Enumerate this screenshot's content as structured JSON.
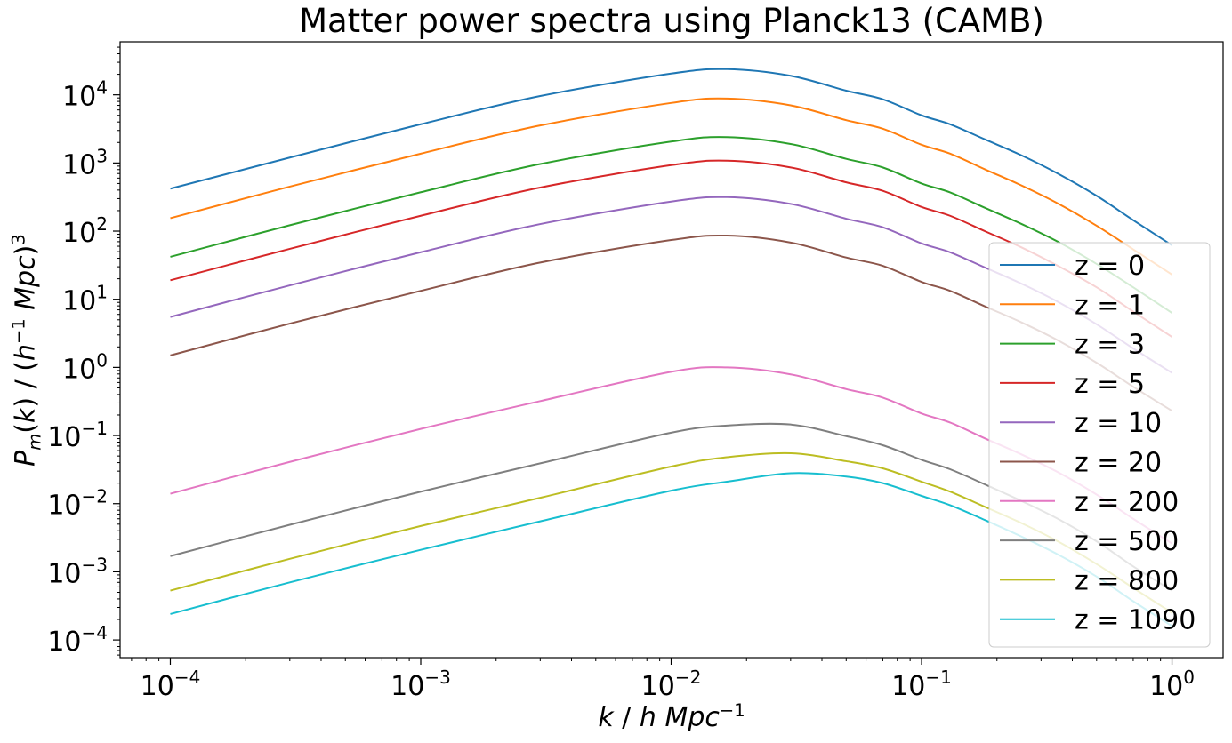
{
  "chart_data": {
    "type": "line",
    "title": "Matter power spectra using Planck13 (CAMB)",
    "xlabel": "k / h Mpc^-1",
    "ylabel": "P_m(k) / (h^-1 Mpc)^3",
    "x_scale": "log",
    "y_scale": "log",
    "xlim": [
      6.3e-05,
      1.6
    ],
    "ylim": [
      5.5e-05,
      60000
    ],
    "xticks": [
      {
        "base": "10",
        "exp": "−4",
        "value": 0.0001
      },
      {
        "base": "10",
        "exp": "−3",
        "value": 0.001
      },
      {
        "base": "10",
        "exp": "−2",
        "value": 0.01
      },
      {
        "base": "10",
        "exp": "−1",
        "value": 0.1
      },
      {
        "base": "10",
        "exp": "0",
        "value": 1
      }
    ],
    "yticks": [
      {
        "base": "10",
        "exp": "−4",
        "value": 0.0001
      },
      {
        "base": "10",
        "exp": "−3",
        "value": 0.001
      },
      {
        "base": "10",
        "exp": "−2",
        "value": 0.01
      },
      {
        "base": "10",
        "exp": "−1",
        "value": 0.1
      },
      {
        "base": "10",
        "exp": "0",
        "value": 1
      },
      {
        "base": "10",
        "exp": "1",
        "value": 10
      },
      {
        "base": "10",
        "exp": "2",
        "value": 100
      },
      {
        "base": "10",
        "exp": "3",
        "value": 1000
      },
      {
        "base": "10",
        "exp": "4",
        "value": 10000
      }
    ],
    "grid": false,
    "legend_position": "lower-right",
    "x": [
      0.0001,
      0.0003,
      0.001,
      0.003,
      0.01,
      0.0167,
      0.03,
      0.05,
      0.07,
      0.1,
      0.13,
      0.18,
      0.25,
      0.35,
      0.5,
      0.7,
      1.0
    ],
    "series": [
      {
        "name": "z = 0",
        "color": "#1f77b4",
        "values": [
          420,
          1200,
          3700,
          9600,
          20500,
          23800,
          19000,
          11500,
          8600,
          5000,
          3700,
          2200,
          1300,
          700,
          330,
          145,
          62
        ]
      },
      {
        "name": "z = 1",
        "color": "#ff7f0e",
        "values": [
          155,
          450,
          1370,
          3550,
          7600,
          8800,
          7000,
          4250,
          3180,
          1850,
          1370,
          800,
          470,
          255,
          120,
          54,
          23
        ]
      },
      {
        "name": "z = 3",
        "color": "#2ca02c",
        "values": [
          42,
          122,
          372,
          965,
          2060,
          2400,
          1900,
          1150,
          860,
          500,
          370,
          218,
          128,
          70,
          33,
          15,
          6.3
        ]
      },
      {
        "name": "z = 5",
        "color": "#d62728",
        "values": [
          19,
          55,
          168,
          436,
          930,
          1080,
          860,
          520,
          390,
          226,
          168,
          99,
          58,
          31,
          15,
          6.6,
          2.8
        ]
      },
      {
        "name": "z = 10",
        "color": "#9467bd",
        "values": [
          5.5,
          16,
          49,
          127,
          272,
          315,
          251,
          152,
          114,
          66,
          49,
          29,
          17,
          9.2,
          4.3,
          1.9,
          0.83
        ]
      },
      {
        "name": "z = 20",
        "color": "#8c564b",
        "values": [
          1.5,
          4.4,
          13.3,
          34.6,
          74,
          86,
          68,
          41,
          31,
          18,
          13.3,
          7.8,
          4.6,
          2.5,
          1.17,
          0.52,
          0.23
        ]
      },
      {
        "name": "z = 200",
        "color": "#e377c2",
        "values": [
          0.014,
          0.041,
          0.125,
          0.32,
          0.86,
          1.0,
          0.79,
          0.48,
          0.36,
          0.21,
          0.155,
          0.09,
          0.053,
          0.029,
          0.0136,
          0.006,
          0.0026
        ]
      },
      {
        "name": "z = 500",
        "color": "#7f7f7f",
        "values": [
          0.0017,
          0.0049,
          0.015,
          0.039,
          0.11,
          0.14,
          0.145,
          0.098,
          0.072,
          0.044,
          0.032,
          0.019,
          0.011,
          0.006,
          0.0028,
          0.0012,
          0.00053
        ]
      },
      {
        "name": "z = 800",
        "color": "#bcbd22",
        "values": [
          0.00053,
          0.00155,
          0.0047,
          0.0122,
          0.035,
          0.048,
          0.055,
          0.042,
          0.033,
          0.021,
          0.015,
          0.0089,
          0.0052,
          0.0028,
          0.0013,
          0.00058,
          0.00025
        ]
      },
      {
        "name": "z = 1090",
        "color": "#17becf",
        "values": [
          0.00024,
          0.0007,
          0.0021,
          0.0055,
          0.0155,
          0.021,
          0.028,
          0.025,
          0.02,
          0.013,
          0.0095,
          0.0057,
          0.0033,
          0.0018,
          0.00085,
          0.00037,
          0.00016
        ]
      }
    ]
  }
}
